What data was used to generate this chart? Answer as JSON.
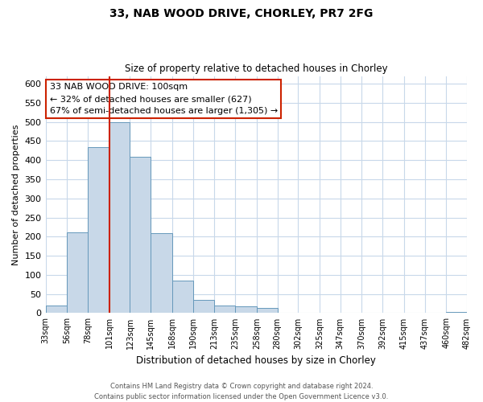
{
  "title": "33, NAB WOOD DRIVE, CHORLEY, PR7 2FG",
  "subtitle": "Size of property relative to detached houses in Chorley",
  "xlabel": "Distribution of detached houses by size in Chorley",
  "ylabel": "Number of detached properties",
  "bin_edges": [
    33,
    56,
    78,
    101,
    123,
    145,
    168,
    190,
    213,
    235,
    258,
    280,
    302,
    325,
    347,
    370,
    392,
    415,
    437,
    460,
    482
  ],
  "bar_heights": [
    20,
    212,
    435,
    500,
    408,
    210,
    85,
    35,
    20,
    18,
    14,
    0,
    0,
    0,
    0,
    0,
    0,
    0,
    0,
    3
  ],
  "bar_color": "#c8d8e8",
  "bar_edge_color": "#6699bb",
  "marker_x": 101,
  "marker_color": "#cc2200",
  "annotation_title": "33 NAB WOOD DRIVE: 100sqm",
  "annotation_line1": "← 32% of detached houses are smaller (627)",
  "annotation_line2": "67% of semi-detached houses are larger (1,305) →",
  "annotation_box_edge": "#cc2200",
  "ytick_values": [
    0,
    50,
    100,
    150,
    200,
    250,
    300,
    350,
    400,
    450,
    500,
    550,
    600
  ],
  "xtick_labels": [
    "33sqm",
    "56sqm",
    "78sqm",
    "101sqm",
    "123sqm",
    "145sqm",
    "168sqm",
    "190sqm",
    "213sqm",
    "235sqm",
    "258sqm",
    "280sqm",
    "302sqm",
    "325sqm",
    "347sqm",
    "370sqm",
    "392sqm",
    "415sqm",
    "437sqm",
    "460sqm",
    "482sqm"
  ],
  "footer_line1": "Contains HM Land Registry data © Crown copyright and database right 2024.",
  "footer_line2": "Contains public sector information licensed under the Open Government Licence v3.0.",
  "background_color": "#ffffff",
  "grid_color": "#c8d8ea",
  "ylim": [
    0,
    620
  ],
  "xlim_left": 33,
  "xlim_right": 482
}
